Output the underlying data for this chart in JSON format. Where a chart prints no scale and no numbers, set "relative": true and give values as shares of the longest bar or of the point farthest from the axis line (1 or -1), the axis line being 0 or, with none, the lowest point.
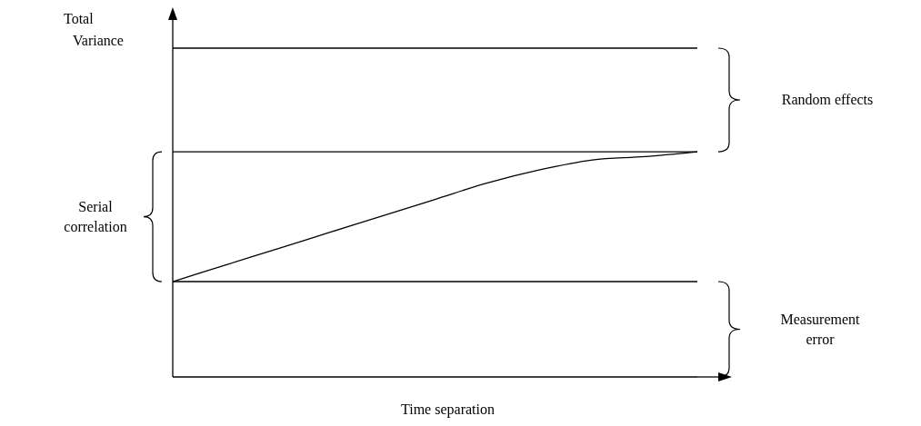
{
  "chart_data": {
    "type": "line",
    "relative": true,
    "ylabel": "Total Variance",
    "xlabel": "Time separation",
    "categories": [
      null,
      null,
      null,
      null,
      null,
      null,
      null,
      null,
      null,
      null,
      null
    ],
    "series": [
      {
        "color": "#000000",
        "values": [
          1,
          1,
          1,
          1,
          1,
          1,
          1,
          1,
          1,
          1,
          1
        ]
      },
      {
        "color": "#000000",
        "values": [
          0.685,
          0.685,
          0.685,
          0.685,
          0.685,
          0.685,
          0.685,
          0.685,
          0.685,
          0.685,
          0.685
        ]
      },
      {
        "color": "#000000",
        "values": [
          0.29,
          0.29,
          0.29,
          0.29,
          0.29,
          0.29,
          0.29,
          0.29,
          0.29,
          0.29,
          0.29
        ]
      },
      {
        "color": "#000000",
        "values": [
          0.29,
          0.34,
          0.39,
          0.44,
          0.49,
          0.54,
          0.59,
          0.63,
          0.66,
          0.67,
          0.685
        ]
      }
    ],
    "annotations": [
      "Random effects",
      "Serial correlation",
      "Measurement error"
    ],
    "grid": false,
    "marker": "none",
    "line_style": "solid"
  }
}
